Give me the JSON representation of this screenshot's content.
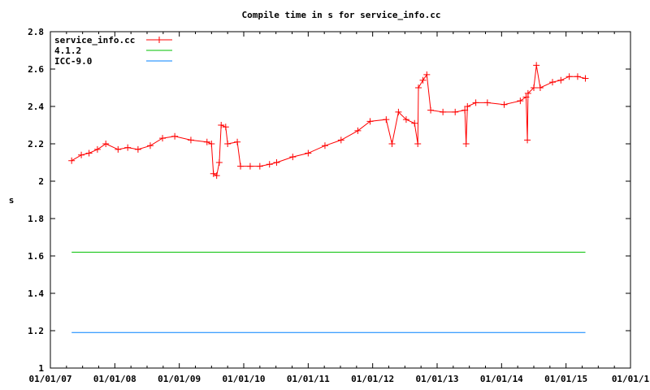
{
  "chart_data": {
    "type": "line",
    "title": "Compile time in s for service_info.cc",
    "xlabel": "",
    "ylabel": "s",
    "ylim": [
      1,
      2.8
    ],
    "yticks": [
      1,
      1.2,
      1.4,
      1.6,
      1.8,
      2,
      2.2,
      2.4,
      2.6,
      2.8
    ],
    "ytick_labels": [
      "1",
      "1.2",
      "1.4",
      "1.6",
      "1.8",
      "2",
      "2.2",
      "2.4",
      "2.6",
      "2.8"
    ],
    "xlim": [
      2007,
      2016
    ],
    "xticks": [
      2007,
      2008,
      2009,
      2010,
      2011,
      2012,
      2013,
      2014,
      2015,
      2016
    ],
    "xtick_labels": [
      "01/01/07",
      "01/01/08",
      "01/01/09",
      "01/01/10",
      "01/01/11",
      "01/01/12",
      "01/01/13",
      "01/01/14",
      "01/01/15",
      "01/01/1"
    ],
    "legend_position": "top-left",
    "grid": false,
    "series": [
      {
        "name": "service_info.cc",
        "color": "#ff0000",
        "marker": "+",
        "x": [
          2007.33,
          2007.48,
          2007.6,
          2007.73,
          2007.86,
          2008.05,
          2008.2,
          2008.36,
          2008.55,
          2008.74,
          2008.93,
          2009.18,
          2009.43,
          2009.5,
          2009.53,
          2009.58,
          2009.62,
          2009.65,
          2009.72,
          2009.75,
          2009.9,
          2009.95,
          2010.1,
          2010.25,
          2010.4,
          2010.51,
          2010.76,
          2011.0,
          2011.26,
          2011.51,
          2011.77,
          2011.96,
          2012.21,
          2012.3,
          2012.4,
          2012.52,
          2012.65,
          2012.7,
          2012.71,
          2012.78,
          2012.84,
          2012.9,
          2013.09,
          2013.28,
          2013.43,
          2013.45,
          2013.47,
          2013.6,
          2013.78,
          2014.04,
          2014.29,
          2014.38,
          2014.4,
          2014.41,
          2014.5,
          2014.54,
          2014.6,
          2014.79,
          2014.92,
          2015.05,
          2015.18,
          2015.3
        ],
        "y": [
          2.11,
          2.14,
          2.15,
          2.17,
          2.2,
          2.17,
          2.18,
          2.17,
          2.19,
          2.23,
          2.24,
          2.22,
          2.21,
          2.2,
          2.04,
          2.03,
          2.1,
          2.3,
          2.29,
          2.2,
          2.21,
          2.08,
          2.08,
          2.08,
          2.09,
          2.1,
          2.13,
          2.15,
          2.19,
          2.22,
          2.27,
          2.32,
          2.33,
          2.2,
          2.37,
          2.33,
          2.31,
          2.2,
          2.5,
          2.54,
          2.57,
          2.38,
          2.37,
          2.37,
          2.38,
          2.2,
          2.4,
          2.42,
          2.42,
          2.41,
          2.43,
          2.45,
          2.22,
          2.47,
          2.5,
          2.62,
          2.5,
          2.53,
          2.54,
          2.56,
          2.56,
          2.55
        ]
      },
      {
        "name": "4.1.2",
        "color": "#00c000",
        "marker": "",
        "x": [
          2007.33,
          2015.3
        ],
        "y": [
          1.62,
          1.62
        ]
      },
      {
        "name": "ICC-9.0",
        "color": "#0080ff",
        "marker": "",
        "x": [
          2007.33,
          2015.3
        ],
        "y": [
          1.19,
          1.19
        ]
      }
    ]
  }
}
